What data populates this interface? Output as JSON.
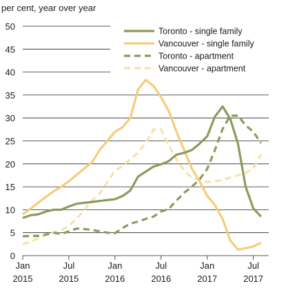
{
  "chart_data": {
    "type": "line",
    "title": "",
    "ylabel": "per cent, year over year",
    "xlabel": "",
    "ylim": [
      0,
      50
    ],
    "yticks": [
      0,
      5,
      10,
      15,
      20,
      25,
      30,
      35,
      40,
      45,
      50
    ],
    "grid": "horizontal",
    "legend_position": "top-right",
    "x_ticks": [
      {
        "month": "Jan",
        "year": "2015",
        "index": 0
      },
      {
        "month": "Jul",
        "year": "2015",
        "index": 6
      },
      {
        "month": "Jan",
        "year": "2016",
        "index": 12
      },
      {
        "month": "Jul",
        "year": "2016",
        "index": 18
      },
      {
        "month": "Jan",
        "year": "2017",
        "index": 24
      },
      {
        "month": "Jul",
        "year": "2017",
        "index": 30
      }
    ],
    "x_range": [
      0,
      32
    ],
    "series": [
      {
        "name": "Toronto - single family",
        "color": "#8a9b5a",
        "dash": "solid",
        "values": [
          8.2,
          8.8,
          9.0,
          9.6,
          10.0,
          10.0,
          10.7,
          11.3,
          11.5,
          11.7,
          11.9,
          12.1,
          12.3,
          13.0,
          14.2,
          17.2,
          18.3,
          19.4,
          19.9,
          20.6,
          22.0,
          22.4,
          23.0,
          24.4,
          26.0,
          30.3,
          32.5,
          29.8,
          24.4,
          15.0,
          10.3,
          8.5
        ]
      },
      {
        "name": "Vancouver - single family",
        "color": "#f5cc7a",
        "dash": "solid",
        "values": [
          9.0,
          10.2,
          11.5,
          12.8,
          14.0,
          15.0,
          16.2,
          17.6,
          19.0,
          20.3,
          23.0,
          25.0,
          27.0,
          28.0,
          30.0,
          36.2,
          38.3,
          37.0,
          34.5,
          31.5,
          27.0,
          23.0,
          19.0,
          16.2,
          13.0,
          11.0,
          8.0,
          3.3,
          1.3,
          1.6,
          2.0,
          2.8
        ]
      },
      {
        "name": "Toronto - apartment",
        "color": "#8a9b5a",
        "dash": "dashed",
        "values": [
          4.2,
          4.3,
          4.3,
          4.6,
          5.0,
          4.7,
          5.3,
          5.9,
          5.8,
          5.6,
          5.3,
          5.0,
          4.9,
          6.0,
          7.0,
          7.4,
          8.0,
          8.5,
          9.6,
          10.2,
          12.0,
          13.7,
          15.0,
          16.6,
          18.9,
          23.0,
          27.6,
          30.5,
          30.5,
          28.4,
          27.0,
          24.5
        ]
      },
      {
        "name": "Vancouver - apartment",
        "color": "#fae0a8",
        "dash": "dashed",
        "values": [
          2.5,
          3.0,
          3.8,
          4.5,
          5.0,
          5.5,
          6.5,
          8.0,
          10.0,
          12.0,
          13.5,
          16.0,
          18.5,
          19.5,
          21.0,
          22.5,
          24.5,
          27.5,
          27.5,
          24.0,
          21.0,
          18.5,
          17.0,
          16.5,
          16.0,
          16.2,
          16.5,
          17.0,
          17.5,
          18.0,
          19.0,
          22.0
        ]
      }
    ]
  }
}
